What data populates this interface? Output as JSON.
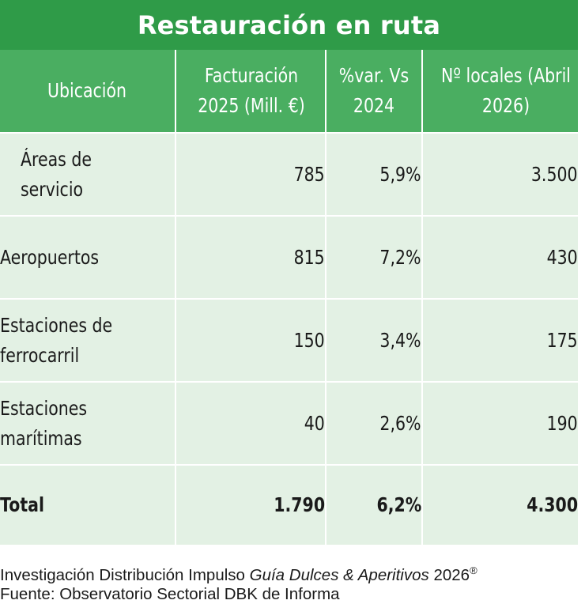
{
  "chart_data": {
    "type": "table",
    "title": "Restauración en ruta",
    "columns": [
      "Ubicación",
      "Facturación 2025 (Mill. €)",
      "%var. Vs 2024",
      "Nº locales (Abril 2026)"
    ],
    "rows": [
      {
        "ubicacion": "Áreas de servicio",
        "facturacion": "785",
        "variacion": "5,9%",
        "locales": "3.500"
      },
      {
        "ubicacion": "Aeropuertos",
        "facturacion": "815",
        "variacion": "7,2%",
        "locales": "430"
      },
      {
        "ubicacion": "Estaciones de ferrocarril",
        "facturacion": "150",
        "variacion": "3,4%",
        "locales": "175"
      },
      {
        "ubicacion": "Estaciones marítimas",
        "facturacion": "40",
        "variacion": "2,6%",
        "locales": "190"
      }
    ],
    "total": {
      "ubicacion": "Total",
      "facturacion": "1.790",
      "variacion": "6,2%",
      "locales": "4.300"
    }
  },
  "footer": {
    "credit_prefix": "Investigación Distribución Impulso",
    "credit_italic": "Guía Dulces & Aperitivos",
    "credit_year": "2026",
    "credit_mark": "®",
    "source": "Fuente: Observatorio Sectorial DBK de Informa"
  },
  "colors": {
    "title_bg": "#2f9b48",
    "header_bg": "#4aae61",
    "row_bg": "#e3f1e4",
    "total_bg": "#a9d6b0"
  }
}
